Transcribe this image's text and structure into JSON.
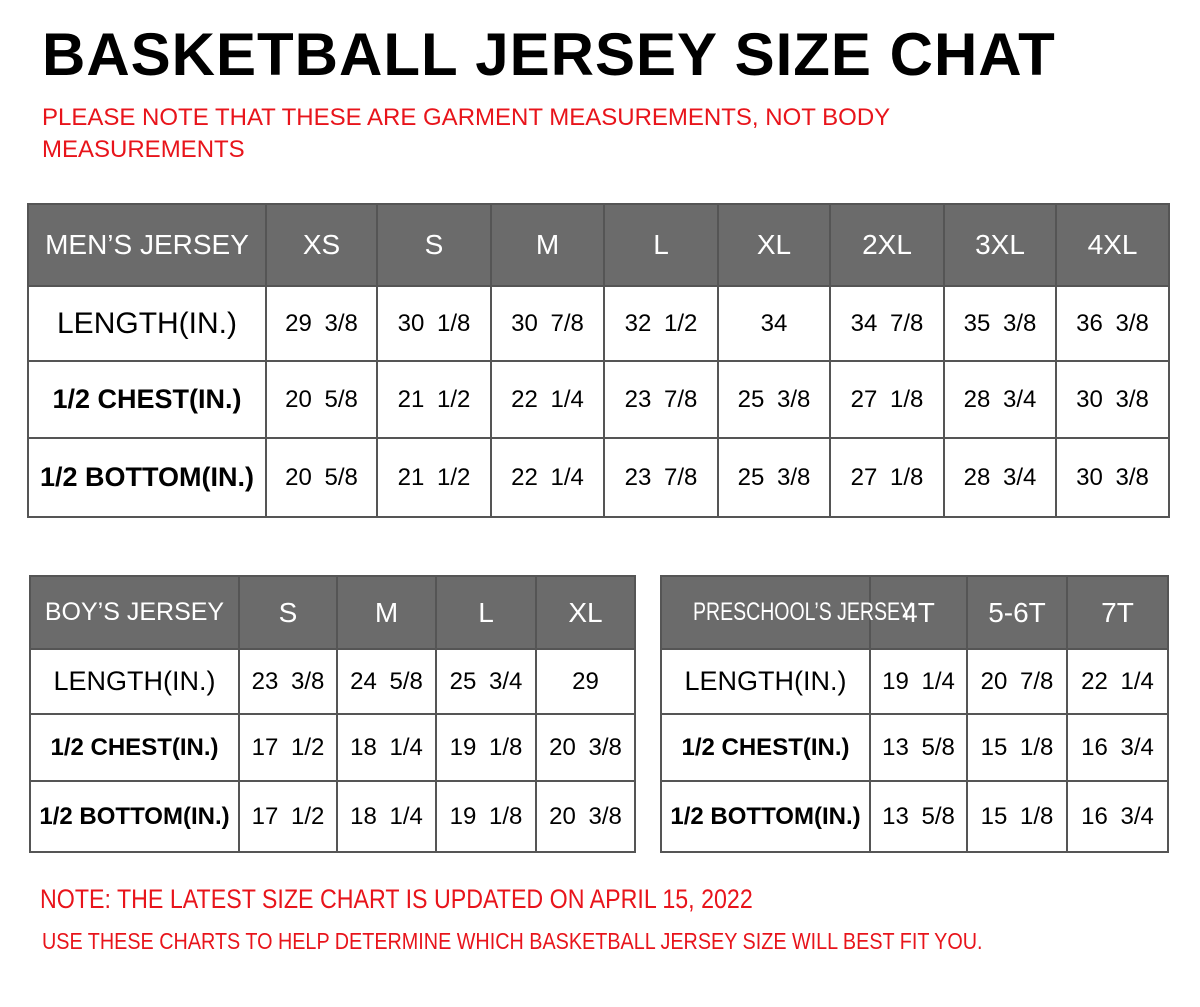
{
  "title": "BASKETBALL JERSEY SIZE CHAT",
  "note_top": [
    "PLEASE NOTE THAT THESE ARE GARMENT MEASUREMENTS, NOT BODY",
    "MEASUREMENTS"
  ],
  "colors": {
    "header_bg": "#6b6b6b",
    "note_red": "#e8141b"
  },
  "mens": {
    "header": "MEN’S JERSEY",
    "sizes": [
      "XS",
      "S",
      "M",
      "L",
      "XL",
      "2XL",
      "3XL",
      "4XL"
    ],
    "rows": [
      {
        "label": "LENGTH(IN.)",
        "values": [
          "29 3/8",
          "30 1/8",
          "30 7/8",
          "32 1/2",
          "34",
          "34 7/8",
          "35 3/8",
          "36 3/8"
        ]
      },
      {
        "label": "1/2 CHEST(IN.)",
        "values": [
          "20 5/8",
          "21 1/2",
          "22 1/4",
          "23 7/8",
          "25 3/8",
          "27 1/8",
          "28 3/4",
          "30 3/8"
        ]
      },
      {
        "label": "1/2 BOTTOM(IN.)",
        "values": [
          "20 5/8",
          "21 1/2",
          "22 1/4",
          "23 7/8",
          "25 3/8",
          "27 1/8",
          "28 3/4",
          "30 3/8"
        ]
      }
    ]
  },
  "boys": {
    "header": "BOY’S JERSEY",
    "sizes": [
      "S",
      "M",
      "L",
      "XL"
    ],
    "rows": [
      {
        "label": "LENGTH(IN.)",
        "values": [
          "23 3/8",
          "24 5/8",
          "25 3/4",
          "29"
        ]
      },
      {
        "label": "1/2 CHEST(IN.)",
        "values": [
          "17 1/2",
          "18 1/4",
          "19 1/8",
          "20 3/8"
        ]
      },
      {
        "label": "1/2 BOTTOM(IN.)",
        "values": [
          "17 1/2",
          "18 1/4",
          "19 1/8",
          "20 3/8"
        ]
      }
    ]
  },
  "preschool": {
    "header": "PRESCHOOL’S JERSEY",
    "sizes": [
      "4T",
      "5-6T",
      "7T"
    ],
    "rows": [
      {
        "label": "LENGTH(IN.)",
        "values": [
          "19 1/4",
          "20 7/8",
          "22 1/4"
        ]
      },
      {
        "label": "1/2 CHEST(IN.)",
        "values": [
          "13 5/8",
          "15 1/8",
          "16 3/4"
        ]
      },
      {
        "label": "1/2 BOTTOM(IN.)",
        "values": [
          "13 5/8",
          "15 1/8",
          "16 3/4"
        ]
      }
    ]
  },
  "note_bottom": [
    "NOTE: THE LATEST SIZE CHART IS UPDATED ON APRIL 15, 2022",
    "USE THESE CHARTS TO HELP DETERMINE WHICH  BASKETBALL JERSEY  SIZE WILL BEST FIT YOU."
  ]
}
